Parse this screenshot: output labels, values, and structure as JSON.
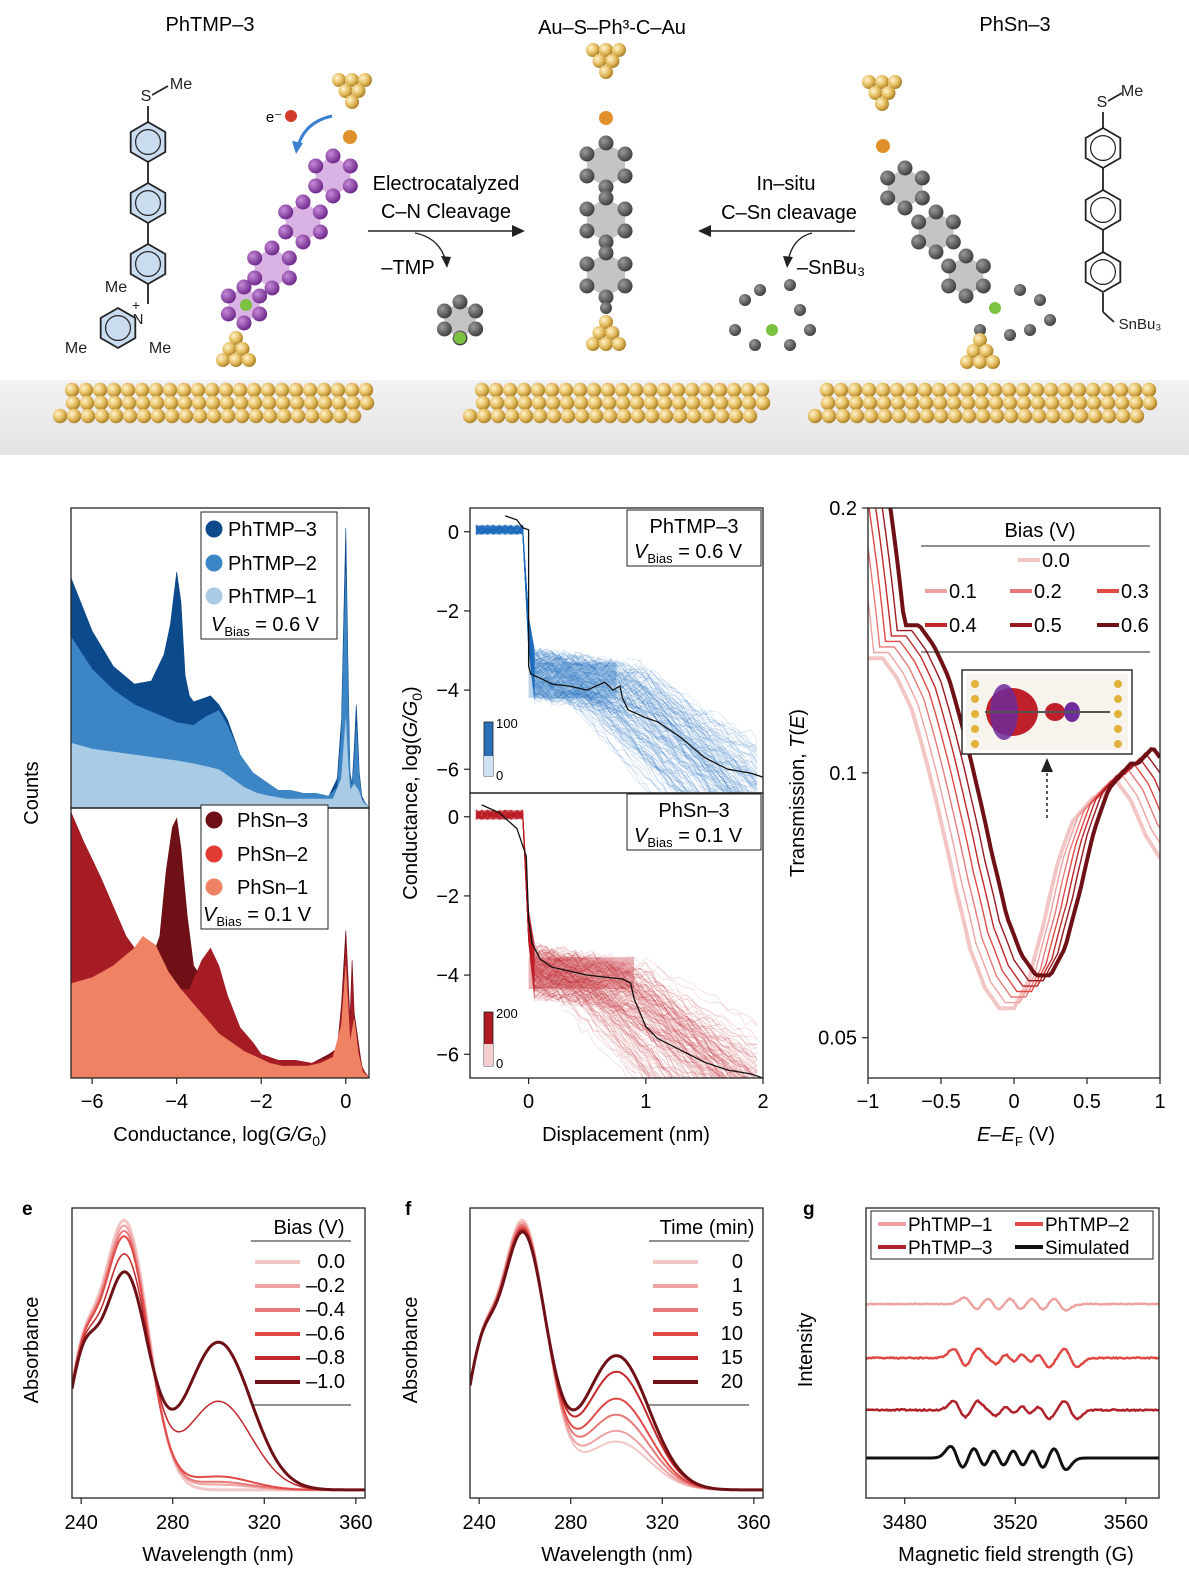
{
  "scheme": {
    "left_title": "PhTMP–3",
    "center_title": "Au–S–Ph³-C–Au",
    "right_title": "PhSn–3",
    "left_arrow_top": "Electrocatalyzed",
    "left_arrow_bottom": "C–N Cleavage",
    "left_leaving": "–TMP",
    "right_arrow_top": "In–situ",
    "right_arrow_bottom": "C–Sn cleavage",
    "right_leaving": "–SnBu₃",
    "electron": "e⁻",
    "me": "Me",
    "s_atom": "S",
    "n_plus": "N",
    "plus": "+",
    "snbu3": "SnBu₃",
    "colors": {
      "gold": "#e8c36a",
      "purple": "#8e3fa6",
      "gray": "#5c5c5c",
      "sulfur": "#e0902a",
      "green": "#7cc241",
      "ring_blue": "#c9dcf0"
    }
  },
  "chart_data": [
    {
      "id": "a",
      "type": "area",
      "xlabel_prefix": "Conductance, log(",
      "xlabel_var": "G/G",
      "xlabel_sub": "0",
      "xlabel_suffix": ")",
      "ylabel": "Counts",
      "xlim": [
        -6.5,
        0.55
      ],
      "xticks": [
        "−6",
        "−4",
        "−2",
        "0"
      ],
      "xtick_values": [
        -6,
        -4,
        -2,
        0
      ],
      "top_panel": {
        "legend": [
          "PhTMP–3",
          "PhTMP–2",
          "PhTMP–1"
        ],
        "bias_label": "V",
        "bias_sub": "Bias",
        "bias_value": " = 0.6 V",
        "series": [
          {
            "name": "PhTMP–3",
            "color": "#0d4a8c",
            "x": [
              -6.5,
              -6.0,
              -5.5,
              -5.0,
              -4.6,
              -4.3,
              -4.15,
              -4.0,
              -3.9,
              -3.8,
              -3.7,
              -3.6,
              -3.4,
              -3.2,
              -3.0,
              -2.8,
              -2.5,
              -2.2,
              -2.0,
              -1.7,
              -1.4,
              -1.1,
              -0.8,
              -0.6,
              -0.4,
              -0.2,
              -0.1,
              0.0,
              0.05,
              0.1,
              0.15,
              0.2,
              0.25,
              0.32,
              0.38,
              0.45,
              0.55
            ],
            "y": [
              0.78,
              0.6,
              0.48,
              0.42,
              0.43,
              0.52,
              0.62,
              0.8,
              0.7,
              0.45,
              0.38,
              0.36,
              0.37,
              0.38,
              0.35,
              0.3,
              0.18,
              0.1,
              0.08,
              0.05,
              0.04,
              0.05,
              0.04,
              0.04,
              0.04,
              0.1,
              0.3,
              0.95,
              0.5,
              0.12,
              0.08,
              0.2,
              0.35,
              0.12,
              0.04,
              0.02,
              0.0
            ]
          },
          {
            "name": "PhTMP–2",
            "color": "#3d86c6",
            "x": [
              -6.5,
              -6.0,
              -5.5,
              -5.0,
              -4.5,
              -4.0,
              -3.6,
              -3.3,
              -3.0,
              -2.8,
              -2.5,
              -2.2,
              -1.9,
              -1.6,
              -1.3,
              -1.0,
              -0.7,
              -0.4,
              -0.2,
              -0.1,
              0.0,
              0.05,
              0.1,
              0.15,
              0.2,
              0.25,
              0.32,
              0.38,
              0.45,
              0.55
            ],
            "y": [
              0.58,
              0.47,
              0.4,
              0.35,
              0.32,
              0.29,
              0.28,
              0.31,
              0.33,
              0.28,
              0.18,
              0.12,
              0.09,
              0.06,
              0.06,
              0.05,
              0.05,
              0.04,
              0.07,
              0.25,
              0.8,
              0.4,
              0.1,
              0.07,
              0.15,
              0.28,
              0.1,
              0.03,
              0.02,
              0.0
            ]
          },
          {
            "name": "PhTMP–1",
            "color": "#a9cbe6",
            "x": [
              -6.5,
              -6.0,
              -5.5,
              -5.0,
              -4.5,
              -4.0,
              -3.6,
              -3.3,
              -3.0,
              -2.7,
              -2.4,
              -2.1,
              -1.8,
              -1.4,
              -1.0,
              -0.6,
              -0.3,
              -0.1,
              0.0,
              0.05,
              0.1,
              0.2,
              0.3,
              0.4,
              0.55
            ],
            "y": [
              0.22,
              0.2,
              0.19,
              0.18,
              0.17,
              0.16,
              0.15,
              0.14,
              0.13,
              0.1,
              0.07,
              0.05,
              0.04,
              0.03,
              0.03,
              0.03,
              0.03,
              0.1,
              0.3,
              0.15,
              0.06,
              0.08,
              0.06,
              0.02,
              0.0
            ]
          }
        ]
      },
      "bottom_panel": {
        "legend": [
          "PhSn–3",
          "PhSn–2",
          "PhSn–1"
        ],
        "bias_label": "V",
        "bias_sub": "Bias",
        "bias_value": " = 0.1 V",
        "series": [
          {
            "name": "PhSn–3",
            "color": "#6e1016",
            "x": [
              -6.5,
              -6.2,
              -5.8,
              -5.5,
              -5.2,
              -4.9,
              -4.6,
              -4.4,
              -4.25,
              -4.1,
              -4.0,
              -3.9,
              -3.75,
              -3.6,
              -3.4,
              -3.2,
              -3.0,
              -2.8,
              -2.5,
              -2.2,
              -2.0,
              -1.6,
              -1.2,
              -0.8,
              -0.4,
              -0.2,
              -0.1,
              0.0,
              0.05,
              0.1,
              0.15,
              0.2,
              0.3,
              0.38,
              0.45,
              0.55
            ],
            "y": [
              0.9,
              0.8,
              0.68,
              0.58,
              0.48,
              0.42,
              0.4,
              0.48,
              0.7,
              0.85,
              0.88,
              0.78,
              0.55,
              0.38,
              0.34,
              0.38,
              0.32,
              0.25,
              0.17,
              0.12,
              0.08,
              0.06,
              0.06,
              0.05,
              0.08,
              0.1,
              0.25,
              0.5,
              0.35,
              0.2,
              0.4,
              0.22,
              0.12,
              0.04,
              0.02,
              0.0
            ]
          },
          {
            "name": "PhSn–2",
            "color": "#a61c24",
            "x": [
              -6.5,
              -6.2,
              -5.8,
              -5.5,
              -5.2,
              -4.9,
              -4.6,
              -4.3,
              -4.0,
              -3.7,
              -3.4,
              -3.2,
              -3.0,
              -2.8,
              -2.5,
              -2.2,
              -2.0,
              -1.6,
              -1.2,
              -0.8,
              -0.4,
              -0.2,
              -0.1,
              0.0,
              0.05,
              0.1,
              0.15,
              0.2,
              0.3,
              0.4,
              0.55
            ],
            "y": [
              0.9,
              0.8,
              0.68,
              0.58,
              0.48,
              0.42,
              0.38,
              0.33,
              0.3,
              0.3,
              0.4,
              0.44,
              0.38,
              0.28,
              0.17,
              0.12,
              0.08,
              0.06,
              0.06,
              0.05,
              0.07,
              0.1,
              0.22,
              0.45,
              0.3,
              0.18,
              0.35,
              0.2,
              0.1,
              0.03,
              0.0
            ]
          },
          {
            "name": "PhSn–1",
            "color": "#ef8263",
            "x": [
              -6.5,
              -6.0,
              -5.5,
              -5.0,
              -4.8,
              -4.5,
              -4.2,
              -3.9,
              -3.6,
              -3.3,
              -3.0,
              -2.7,
              -2.4,
              -2.1,
              -1.8,
              -1.5,
              -1.2,
              -0.9,
              -0.6,
              -0.3,
              -0.1,
              0.0,
              0.05,
              0.1,
              0.2,
              0.3,
              0.4,
              0.55
            ],
            "y": [
              0.32,
              0.34,
              0.38,
              0.44,
              0.48,
              0.45,
              0.36,
              0.3,
              0.25,
              0.2,
              0.15,
              0.12,
              0.09,
              0.07,
              0.05,
              0.04,
              0.04,
              0.04,
              0.05,
              0.07,
              0.18,
              0.38,
              0.25,
              0.12,
              0.2,
              0.08,
              0.02,
              0.0
            ]
          }
        ]
      }
    },
    {
      "id": "b",
      "type": "heatmap",
      "xlabel": "Displacement (nm)",
      "ylabel_prefix": "Conductance, log(",
      "ylabel_var": "G/G",
      "ylabel_sub": "0",
      "ylabel_suffix": ")",
      "xlim": [
        -0.5,
        2.0
      ],
      "ylim": [
        -6.6,
        0.6
      ],
      "xticks": [
        "0",
        "1",
        "2"
      ],
      "xtick_values": [
        0,
        1,
        2
      ],
      "yticks": [
        "0",
        "−2",
        "−4",
        "−6"
      ],
      "ytick_values": [
        0,
        -2,
        -4,
        -6
      ],
      "top_panel": {
        "title": "PhTMP–3",
        "bias_label": "V",
        "bias_sub": "Bias",
        "bias_value": " = 0.6 V",
        "colorbar": [
          "100",
          "0"
        ],
        "colors": [
          "#ffffff",
          "#0f5fb0"
        ],
        "trace": {
          "x": [
            -0.2,
            -0.1,
            -0.05,
            0.0,
            0.0,
            0.02,
            0.1,
            0.2,
            0.35,
            0.5,
            0.65,
            0.72,
            0.78,
            0.8,
            0.85,
            1.0,
            1.1,
            1.3,
            1.5,
            1.7,
            1.9,
            2.0
          ],
          "y": [
            0.4,
            0.3,
            0.1,
            0.05,
            -3.4,
            -3.6,
            -3.7,
            -3.85,
            -3.9,
            -4.0,
            -3.8,
            -4.0,
            -3.9,
            -4.2,
            -4.5,
            -4.7,
            -4.8,
            -5.2,
            -5.7,
            -6.0,
            -6.1,
            -6.2
          ]
        }
      },
      "bottom_panel": {
        "title": "PhSn–3",
        "bias_label": "V",
        "bias_sub": "Bias",
        "bias_value": " = 0.1 V",
        "colorbar": [
          "200",
          "0"
        ],
        "colors": [
          "#ffffff",
          "#b01b23"
        ],
        "trace": {
          "x": [
            -0.4,
            -0.25,
            -0.1,
            -0.02,
            0.0,
            0.03,
            0.1,
            0.2,
            0.35,
            0.5,
            0.65,
            0.8,
            0.87,
            0.9,
            1.0,
            1.1,
            1.3,
            1.5,
            1.7,
            1.9,
            2.0
          ],
          "y": [
            0.3,
            0.1,
            -0.3,
            -1.0,
            -2.6,
            -3.2,
            -3.6,
            -3.8,
            -3.9,
            -4.0,
            -4.05,
            -4.1,
            -4.2,
            -4.6,
            -5.3,
            -5.6,
            -5.9,
            -6.2,
            -6.4,
            -6.5,
            -6.6
          ]
        }
      }
    },
    {
      "id": "c",
      "type": "line",
      "xlabel_var1": "E",
      "xlabel_var2": "E",
      "xlabel_sub": "F",
      "xlabel_unit": " (V)",
      "ylabel_prefix": "Transmission, ",
      "ylabel_var": "T",
      "ylabel_arg": "E",
      "xlim": [
        -1.0,
        1.0
      ],
      "ylim": [
        0.045,
        0.2
      ],
      "log_y": true,
      "xticks": [
        "−1",
        "−0.5",
        "0",
        "0.5",
        "1"
      ],
      "xtick_values": [
        -1.0,
        -0.5,
        0.0,
        0.5,
        1.0
      ],
      "yticks": [
        "0.2",
        "0.1",
        "0.05"
      ],
      "ytick_values": [
        0.2,
        0.1,
        0.05
      ],
      "legend_title": "Bias (V)",
      "series": [
        {
          "name": "0.0",
          "shift": 0.0,
          "color": "#f3c6c6",
          "width": 4
        },
        {
          "name": "0.1",
          "shift": 0.04,
          "color": "#eea3a3",
          "width": 1.4
        },
        {
          "name": "0.2",
          "shift": 0.08,
          "color": "#e77a79",
          "width": 1.4
        },
        {
          "name": "0.3",
          "shift": 0.12,
          "color": "#e04a46",
          "width": 1.4
        },
        {
          "name": "0.4",
          "shift": 0.16,
          "color": "#c1282a",
          "width": 1.4
        },
        {
          "name": "0.5",
          "shift": 0.2,
          "color": "#9b1a20",
          "width": 1.4
        },
        {
          "name": "0.6",
          "shift": 0.25,
          "color": "#6e1016",
          "width": 4
        }
      ],
      "base_curve": {
        "x": [
          -1.0,
          -0.9,
          -0.8,
          -0.7,
          -0.6,
          -0.5,
          -0.4,
          -0.3,
          -0.2,
          -0.1,
          0.0,
          0.1,
          0.2,
          0.3,
          0.4,
          0.5,
          0.55,
          0.6,
          0.7,
          0.8,
          0.9,
          1.0
        ],
        "y": [
          0.135,
          0.135,
          0.128,
          0.118,
          0.103,
          0.088,
          0.074,
          0.063,
          0.057,
          0.054,
          0.054,
          0.058,
          0.067,
          0.079,
          0.088,
          0.092,
          0.094,
          0.094,
          0.098,
          0.093,
          0.085,
          0.08
        ]
      }
    },
    {
      "id": "e",
      "type": "line",
      "panel_letter": "e",
      "xlabel": "Wavelength (nm)",
      "ylabel": "Absorbance",
      "xlim": [
        236,
        364
      ],
      "ylim": [
        0,
        1.08
      ],
      "xticks": [
        "240",
        "280",
        "320",
        "360"
      ],
      "xtick_values": [
        240,
        280,
        320,
        360
      ],
      "legend_title": "Bias (V)",
      "series": [
        {
          "name": "0.0",
          "color": "#f3c6c6",
          "peak": 1.0,
          "shoulder": 0.0,
          "width": 3
        },
        {
          "name": "–0.2",
          "color": "#eea3a3",
          "peak": 0.98,
          "shoulder": 0.02,
          "width": 2
        },
        {
          "name": "–0.4",
          "color": "#e77a79",
          "peak": 0.96,
          "shoulder": 0.03,
          "width": 2
        },
        {
          "name": "–0.6",
          "color": "#e04a46",
          "peak": 0.94,
          "shoulder": 0.05,
          "width": 2
        },
        {
          "name": "–0.8",
          "color": "#c1282a",
          "peak": 0.87,
          "shoulder": 0.33,
          "width": 1.5
        },
        {
          "name": "–1.0",
          "color": "#6e1016",
          "peak": 0.8,
          "shoulder": 0.55,
          "width": 3
        }
      ]
    },
    {
      "id": "f",
      "type": "line",
      "panel_letter": "f",
      "xlabel": "Wavelength (nm)",
      "ylabel": "Absorbance",
      "xlim": [
        236,
        364
      ],
      "ylim": [
        0,
        1.08
      ],
      "xticks": [
        "240",
        "280",
        "320",
        "360"
      ],
      "xtick_values": [
        240,
        280,
        320,
        360
      ],
      "legend_title": "Time (min)",
      "series": [
        {
          "name": "0",
          "color": "#f3c6c6",
          "peak": 1.0,
          "shoulder": 0.18,
          "width": 2
        },
        {
          "name": "1",
          "color": "#eea3a3",
          "peak": 0.99,
          "shoulder": 0.22,
          "width": 2
        },
        {
          "name": "5",
          "color": "#e77a79",
          "peak": 0.98,
          "shoulder": 0.28,
          "width": 2
        },
        {
          "name": "10",
          "color": "#e04a46",
          "peak": 0.97,
          "shoulder": 0.34,
          "width": 2
        },
        {
          "name": "15",
          "color": "#c1282a",
          "peak": 0.96,
          "shoulder": 0.44,
          "width": 2
        },
        {
          "name": "20",
          "color": "#6e1016",
          "peak": 0.95,
          "shoulder": 0.5,
          "width": 3
        }
      ]
    },
    {
      "id": "g",
      "type": "line",
      "panel_letter": "g",
      "xlabel": "Magnetic field strength (G)",
      "ylabel": "Intensity",
      "xlim": [
        3466,
        3572
      ],
      "xticks": [
        "3480",
        "3520",
        "3560"
      ],
      "xtick_values": [
        3480,
        3520,
        3560
      ],
      "series": [
        {
          "name": "PhTMP–1",
          "color": "#eea3a3",
          "lines": [
            3504,
            3512,
            3520,
            3528,
            3536
          ],
          "amp": 0.55,
          "noise": 0.09,
          "offset": 3
        },
        {
          "name": "PhTMP–2",
          "color": "#e04a46",
          "lines": [
            3500,
            3508,
            3512,
            3518,
            3524,
            3530,
            3540
          ],
          "amp": 0.8,
          "noise": 0.12,
          "offset": 2
        },
        {
          "name": "PhTMP–3",
          "color": "#b0222a",
          "lines": [
            3500,
            3508,
            3512,
            3518,
            3524,
            3530,
            3540
          ],
          "amp": 0.75,
          "noise": 0.14,
          "offset": 1
        },
        {
          "name": "Simulated",
          "color": "#111111",
          "lines": [
            3499,
            3507,
            3514,
            3521,
            3528,
            3536
          ],
          "amp": 1.0,
          "noise": 0.0,
          "offset": 0
        }
      ]
    }
  ]
}
